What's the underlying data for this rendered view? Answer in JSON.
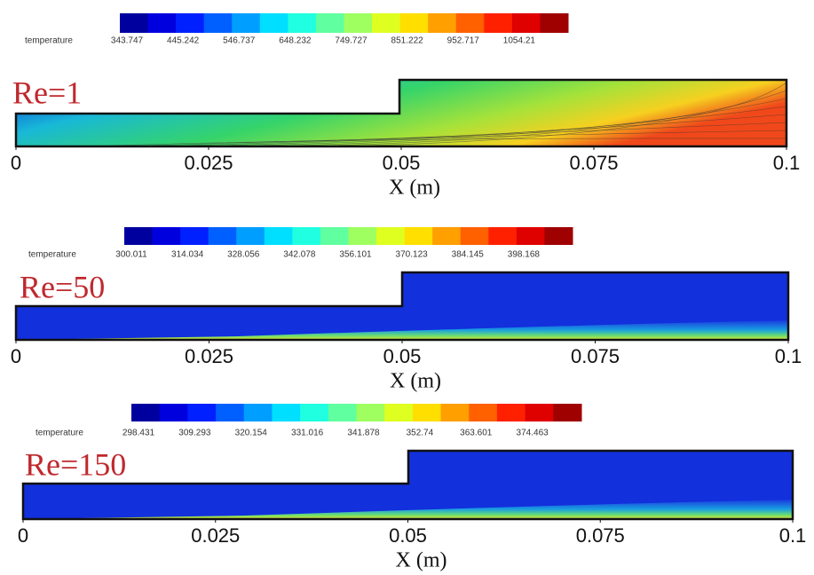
{
  "panels": [
    {
      "label": "Re=1",
      "colorbar": {
        "title": "temperature",
        "ticks": [
          343.747,
          445.242,
          546.737,
          648.232,
          749.727,
          851.222,
          952.717,
          1054.21
        ]
      },
      "xlim": [
        0,
        0.1
      ],
      "xticks": [
        0,
        0.025,
        0.05,
        0.075,
        0.1
      ],
      "xlabel": "X (m)"
    },
    {
      "label": "Re=50",
      "colorbar": {
        "title": "temperature",
        "ticks": [
          300.011,
          314.034,
          328.056,
          342.078,
          356.101,
          370.123,
          384.145,
          398.168
        ]
      },
      "xlim": [
        0,
        0.1
      ],
      "xticks": [
        0,
        0.025,
        0.05,
        0.075,
        0.1
      ],
      "xlabel": "X (m)"
    },
    {
      "label": "Re=150",
      "colorbar": {
        "title": "temperature",
        "ticks": [
          298.431,
          309.293,
          320.154,
          331.016,
          341.878,
          352.74,
          363.601,
          374.463
        ]
      },
      "xlim": [
        0,
        0.1
      ],
      "xticks": [
        0,
        0.025,
        0.05,
        0.075,
        0.1
      ],
      "xlabel": "X (m)"
    }
  ]
}
